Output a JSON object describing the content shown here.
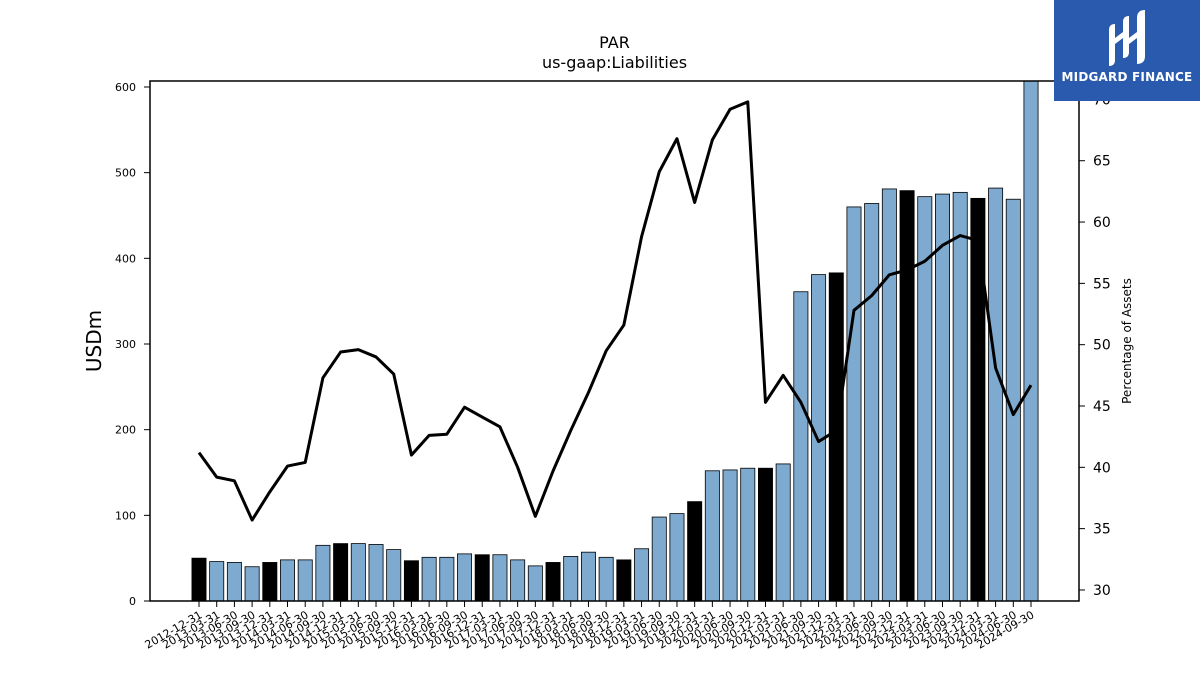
{
  "brand": {
    "name": "MIDGARD FINANCE",
    "color": "#2a5aad"
  },
  "chart_data": {
    "type": "bar",
    "title": "PAR",
    "subtitle": "us-gaap:Liabilities",
    "ylabel": "USDm",
    "y2label": "Percentage of Assets",
    "ylim": [
      0,
      607
    ],
    "y2lim": [
      29.1,
      71.5
    ],
    "yticks": [
      0,
      100,
      200,
      300,
      400,
      500,
      600
    ],
    "y2ticks": [
      30,
      35,
      40,
      45,
      50,
      55,
      60,
      65,
      70
    ],
    "grid": false,
    "colors": {
      "bar_default": "#7eaacf",
      "bar_highlight": "#000000",
      "line": "#000000"
    },
    "categories": [
      "2012-12-31",
      "2013-03-31",
      "2013-06-30",
      "2013-09-30",
      "2013-12-31",
      "2014-03-31",
      "2014-06-30",
      "2014-09-30",
      "2014-12-31",
      "2015-03-31",
      "2015-06-30",
      "2015-09-30",
      "2015-12-31",
      "2016-03-31",
      "2016-06-30",
      "2016-09-30",
      "2016-12-31",
      "2017-03-31",
      "2017-06-30",
      "2017-09-30",
      "2017-12-31",
      "2018-03-31",
      "2018-06-30",
      "2018-09-30",
      "2018-12-31",
      "2019-03-31",
      "2019-06-30",
      "2019-09-30",
      "2019-12-31",
      "2020-03-31",
      "2020-06-30",
      "2020-09-30",
      "2020-12-31",
      "2021-03-31",
      "2021-06-30",
      "2021-09-30",
      "2021-12-31",
      "2022-03-31",
      "2022-06-30",
      "2022-09-30",
      "2022-12-31",
      "2023-03-31",
      "2023-06-30",
      "2023-09-30",
      "2023-12-31",
      "2024-03-31",
      "2024-06-30",
      "2024-09-30"
    ],
    "series": [
      {
        "kind": "bar",
        "values": [
          50,
          46,
          45,
          40,
          45,
          48,
          48,
          65,
          67,
          67,
          66,
          60,
          47,
          51,
          51,
          55,
          54,
          54,
          48,
          41,
          45,
          52,
          57,
          51,
          48,
          61,
          98,
          102,
          116,
          152,
          153,
          155,
          155,
          160,
          361,
          381,
          383,
          460,
          464,
          481,
          479,
          472,
          475,
          477,
          470,
          482,
          469,
          607
        ],
        "highlight_year_end": true
      },
      {
        "kind": "line",
        "axis": "right",
        "values": [
          41.2,
          39.2,
          38.9,
          35.7,
          38.0,
          40.1,
          40.4,
          47.3,
          49.4,
          49.6,
          49.0,
          47.6,
          41.0,
          42.6,
          42.7,
          44.9,
          44.1,
          43.3,
          40.0,
          36.0,
          39.7,
          43.0,
          46.1,
          49.5,
          51.6,
          58.8,
          64.1,
          66.8,
          61.6,
          66.7,
          69.2,
          69.8,
          45.3,
          47.5,
          45.3,
          42.1,
          43.0,
          52.8,
          54.0,
          55.7,
          56.1,
          56.8,
          58.1,
          58.9,
          58.5,
          48.1,
          44.3,
          46.7
        ]
      }
    ]
  }
}
